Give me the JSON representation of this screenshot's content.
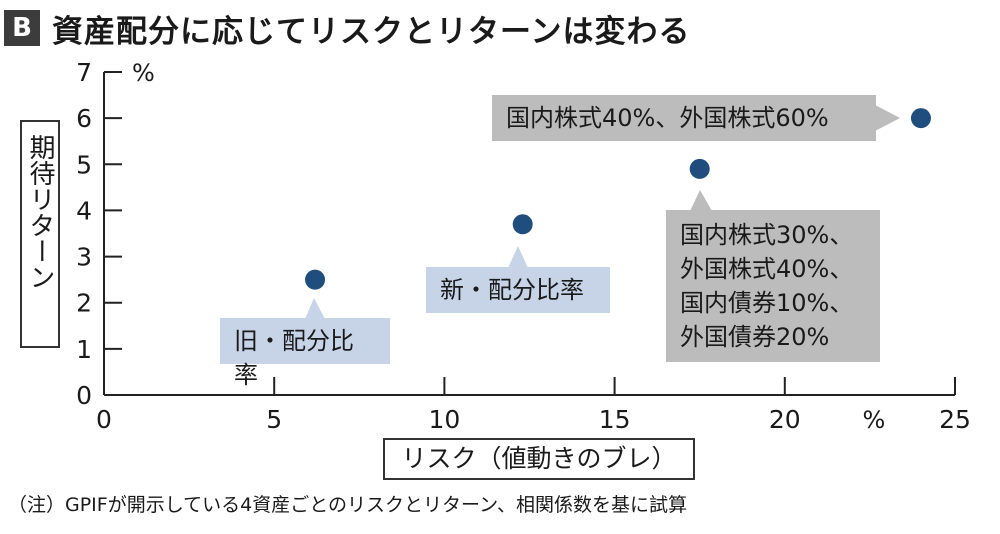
{
  "header": {
    "badge": "B",
    "title": "資産配分に応じてリスクとリターンは変わる"
  },
  "chart_data": {
    "type": "scatter",
    "xlabel": "リスク（値動きのブレ）",
    "ylabel": "期待リターン",
    "x_unit": "%",
    "y_unit": "%",
    "xlim": [
      0,
      25
    ],
    "ylim": [
      0,
      7
    ],
    "x_ticks": [
      "0",
      "5",
      "10",
      "15",
      "20",
      "25"
    ],
    "y_ticks": [
      "0",
      "1",
      "2",
      "3",
      "4",
      "5",
      "6",
      "7"
    ],
    "points": [
      {
        "x": 6.2,
        "y": 2.5,
        "label": "旧・配分比率"
      },
      {
        "x": 12.3,
        "y": 3.7,
        "label": "新・配分比率"
      },
      {
        "x": 17.5,
        "y": 4.9,
        "label": "国内株式30%、外国株式40%、国内債券10%、外国債券20%"
      },
      {
        "x": 24.0,
        "y": 6.0,
        "label": "国内株式40%、外国株式60%"
      }
    ],
    "point_color": "#1f4e7e"
  },
  "annotations": {
    "old": "旧・配分比率",
    "new": "新・配分比率",
    "mix_lines": [
      "国内株式30%、",
      "外国株式40%、",
      "国内債券10%、",
      "外国債券20%"
    ],
    "equity": "国内株式40%、外国株式60%"
  },
  "note": "（注）GPIFが開示している4資産ごとのリスクとリターン、相関係数を基に試算"
}
